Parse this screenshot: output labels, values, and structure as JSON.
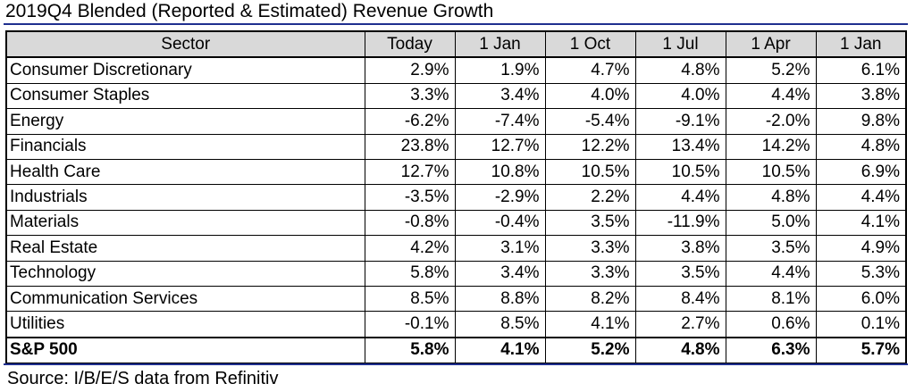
{
  "title": "2019Q4 Blended (Reported & Estimated) Revenue Growth",
  "source": "Source: I/B/E/S data from Refinitiv",
  "colors": {
    "rule": "#1f2f8f",
    "header_bg": "#d9d9d9"
  },
  "table": {
    "headers": [
      "Sector",
      "Today",
      "1 Jan",
      "1 Oct",
      "1 Jul",
      "1 Apr",
      "1 Jan"
    ],
    "rows": [
      [
        "Consumer Discretionary",
        "2.9%",
        "1.9%",
        "4.7%",
        "4.8%",
        "5.2%",
        "6.1%"
      ],
      [
        "Consumer Staples",
        "3.3%",
        "3.4%",
        "4.0%",
        "4.0%",
        "4.4%",
        "3.8%"
      ],
      [
        "Energy",
        "-6.2%",
        "-7.4%",
        "-5.4%",
        "-9.1%",
        "-2.0%",
        "9.8%"
      ],
      [
        "Financials",
        "23.8%",
        "12.7%",
        "12.2%",
        "13.4%",
        "14.2%",
        "4.8%"
      ],
      [
        "Health Care",
        "12.7%",
        "10.8%",
        "10.5%",
        "10.5%",
        "10.5%",
        "6.9%"
      ],
      [
        "Industrials",
        "-3.5%",
        "-2.9%",
        "2.2%",
        "4.4%",
        "4.8%",
        "4.4%"
      ],
      [
        "Materials",
        "-0.8%",
        "-0.4%",
        "3.5%",
        "-11.9%",
        "5.0%",
        "4.1%"
      ],
      [
        "Real Estate",
        "4.2%",
        "3.1%",
        "3.3%",
        "3.8%",
        "3.5%",
        "4.9%"
      ],
      [
        "Technology",
        "5.8%",
        "3.4%",
        "3.3%",
        "3.5%",
        "4.4%",
        "5.3%"
      ],
      [
        "Communication Services",
        "8.5%",
        "8.8%",
        "8.2%",
        "8.4%",
        "8.1%",
        "6.0%"
      ],
      [
        "Utilities",
        "-0.1%",
        "8.5%",
        "4.1%",
        "2.7%",
        "0.6%",
        "0.1%"
      ]
    ],
    "total": [
      "S&P 500",
      "5.8%",
      "4.1%",
      "5.2%",
      "4.8%",
      "6.3%",
      "5.7%"
    ]
  }
}
